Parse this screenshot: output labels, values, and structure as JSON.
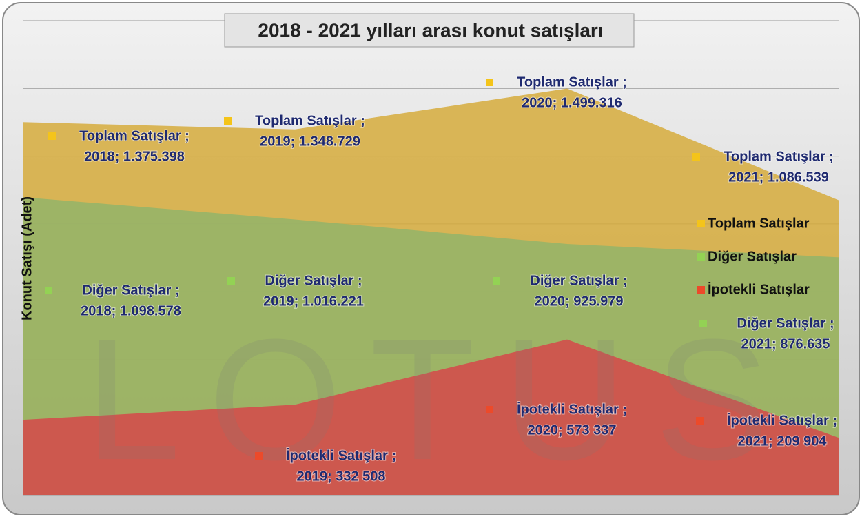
{
  "chart_data": {
    "type": "area",
    "title": "2018 - 2021 yılları arası konut satışları",
    "y_label": "Konut Satışı (Adet)",
    "watermark": "LOTUS",
    "ylim": [
      0,
      1750000
    ],
    "yticks": [
      0,
      250000,
      500000,
      750000,
      1000000,
      1250000,
      1500000,
      1750000
    ],
    "grid": true,
    "legend": "right",
    "series": [
      {
        "name": "Toplam Satışlar",
        "color": "#d6ab3c",
        "marker": "#f4c41a",
        "values": [
          1375398,
          1348729,
          1499316,
          1086539
        ],
        "value_labels": [
          [
            "Toplam Satışlar ;",
            "2018; 1.375.398"
          ],
          [
            "Toplam Satışlar ;",
            "2019; 1.348.729"
          ],
          [
            "Toplam Satışlar ;",
            "2020; 1.499.316"
          ],
          [
            "Toplam Satışlar ;",
            "2021; 1.086.539"
          ]
        ]
      },
      {
        "name": "Diğer Satışlar",
        "color": "#93b46a",
        "marker": "#93d254",
        "values": [
          1098578,
          1016221,
          925979,
          876635
        ],
        "value_labels": [
          [
            "Diğer Satışlar ;",
            "2018; 1.098.578"
          ],
          [
            "Diğer Satışlar ;",
            "2019; 1.016.221"
          ],
          [
            "Diğer Satışlar ;",
            "2020; 925.979"
          ],
          [
            "Diğer Satışlar ;",
            "2021; 876.635"
          ]
        ]
      },
      {
        "name": "İpotekli Satışlar",
        "color": "#d6484a",
        "marker": "#ec4a2a",
        "values": [
          276820,
          332508,
          573337,
          209904
        ],
        "value_labels": [
          null,
          [
            "İpotekli Satışlar ;",
            "2019; 332 508"
          ],
          [
            "İpotekli Satışlar ;",
            "2020; 573 337"
          ],
          [
            "İpotekli Satışlar ;",
            "2021; 209 904"
          ]
        ]
      }
    ]
  }
}
